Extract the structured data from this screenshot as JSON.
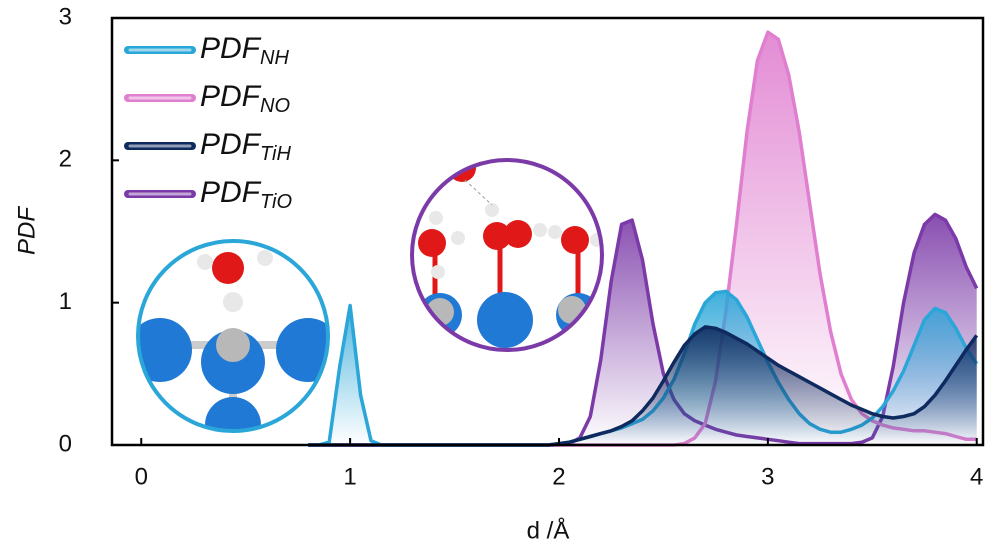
{
  "chart_data": {
    "type": "area",
    "x_label": "d /Å",
    "y_label": "PDF",
    "x": [
      0.8,
      0.85,
      0.9,
      0.95,
      1.0,
      1.05,
      1.1,
      1.15,
      1.2,
      1.25,
      1.3,
      1.35,
      1.4,
      1.45,
      1.5,
      1.55,
      1.6,
      1.65,
      1.7,
      1.75,
      1.8,
      1.85,
      1.9,
      1.95,
      2.0,
      2.05,
      2.1,
      2.15,
      2.2,
      2.25,
      2.3,
      2.35,
      2.4,
      2.45,
      2.5,
      2.55,
      2.6,
      2.65,
      2.7,
      2.75,
      2.8,
      2.85,
      2.9,
      2.95,
      3.0,
      3.05,
      3.1,
      3.15,
      3.2,
      3.25,
      3.3,
      3.35,
      3.4,
      3.45,
      3.5,
      3.55,
      3.6,
      3.65,
      3.7,
      3.75,
      3.8,
      3.85,
      3.9,
      3.95,
      4.0
    ],
    "series": [
      {
        "name": "PDF",
        "name_sub": "TiO",
        "color": "#7b3aa8",
        "values": [
          0,
          0,
          0,
          0,
          0,
          0,
          0,
          0,
          0,
          0,
          0,
          0,
          0,
          0,
          0,
          0,
          0,
          0,
          0,
          0,
          0,
          0,
          0,
          0,
          0,
          0.01,
          0.05,
          0.2,
          0.6,
          1.15,
          1.55,
          1.58,
          1.3,
          0.85,
          0.5,
          0.32,
          0.22,
          0.17,
          0.14,
          0.11,
          0.09,
          0.07,
          0.06,
          0.05,
          0.04,
          0.03,
          0.02,
          0.01,
          0.01,
          0.01,
          0.01,
          0.01,
          0.01,
          0.02,
          0.05,
          0.2,
          0.55,
          1.0,
          1.35,
          1.55,
          1.62,
          1.58,
          1.45,
          1.25,
          1.1
        ]
      },
      {
        "name": "PDF",
        "name_sub": "NO",
        "color": "#e07fd0",
        "values": [
          0,
          0,
          0,
          0,
          0,
          0,
          0,
          0,
          0,
          0,
          0,
          0,
          0,
          0,
          0,
          0,
          0,
          0,
          0,
          0,
          0,
          0,
          0,
          0,
          0,
          0,
          0,
          0,
          0,
          0,
          0,
          0,
          0,
          0,
          0,
          0,
          0.01,
          0.05,
          0.15,
          0.45,
          0.95,
          1.55,
          2.2,
          2.7,
          2.9,
          2.85,
          2.6,
          2.2,
          1.7,
          1.2,
          0.8,
          0.5,
          0.32,
          0.22,
          0.17,
          0.14,
          0.12,
          0.11,
          0.1,
          0.1,
          0.09,
          0.08,
          0.06,
          0.04,
          0.04
        ]
      },
      {
        "name": "PDF",
        "name_sub": "NH",
        "color": "#2aa6d8",
        "values": [
          0,
          0,
          0.02,
          0.55,
          0.98,
          0.35,
          0.03,
          0,
          0,
          0,
          0,
          0,
          0,
          0,
          0,
          0,
          0,
          0,
          0,
          0,
          0,
          0,
          0,
          0,
          0.01,
          0.02,
          0.04,
          0.06,
          0.08,
          0.1,
          0.12,
          0.15,
          0.18,
          0.24,
          0.33,
          0.46,
          0.64,
          0.85,
          1.0,
          1.07,
          1.08,
          1.02,
          0.9,
          0.74,
          0.58,
          0.44,
          0.32,
          0.22,
          0.15,
          0.11,
          0.09,
          0.09,
          0.11,
          0.14,
          0.19,
          0.27,
          0.38,
          0.52,
          0.7,
          0.88,
          0.96,
          0.93,
          0.82,
          0.68,
          0.57
        ]
      },
      {
        "name": "PDF",
        "name_sub": "TiH",
        "color": "#0e2a5e",
        "values": [
          0,
          0,
          0,
          0,
          0,
          0,
          0,
          0,
          0,
          0,
          0,
          0,
          0,
          0,
          0,
          0,
          0,
          0,
          0,
          0,
          0,
          0,
          0,
          0,
          0.01,
          0.02,
          0.04,
          0.06,
          0.08,
          0.1,
          0.13,
          0.17,
          0.24,
          0.33,
          0.45,
          0.58,
          0.7,
          0.78,
          0.83,
          0.82,
          0.79,
          0.75,
          0.71,
          0.66,
          0.61,
          0.56,
          0.52,
          0.48,
          0.44,
          0.4,
          0.36,
          0.32,
          0.28,
          0.25,
          0.22,
          0.2,
          0.19,
          0.2,
          0.22,
          0.27,
          0.35,
          0.45,
          0.56,
          0.67,
          0.77
        ]
      }
    ],
    "legend_order": [
      2,
      1,
      3,
      0
    ],
    "xlim": [
      -0.14,
      4.03
    ],
    "xticks": [
      0,
      1,
      2,
      3,
      4
    ],
    "ylim": [
      0,
      3
    ],
    "yticks": [
      0,
      1,
      2,
      3
    ]
  }
}
